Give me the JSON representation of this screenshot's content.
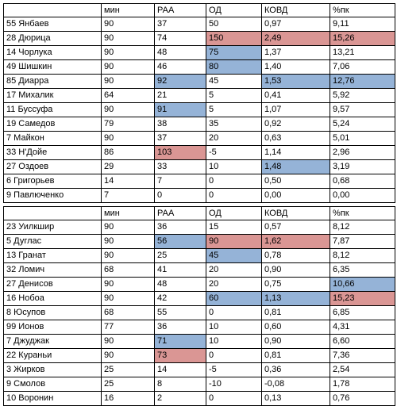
{
  "headers": [
    "",
    "мин",
    "РАА",
    "ОД",
    "КОВД",
    "%пк"
  ],
  "tables": [
    {
      "rows": [
        [
          "55 Янбаев",
          "90",
          "37",
          "50",
          "0,97",
          "9,11"
        ],
        [
          "28 Дюрица",
          "90",
          "74",
          "150",
          "2,49",
          "15,26"
        ],
        [
          "14 Чорлука",
          "90",
          "48",
          "75",
          "1,37",
          "13,21"
        ],
        [
          "49 Шишкин",
          "90",
          "46",
          "80",
          "1,40",
          "7,06"
        ],
        [
          "85 Диарра",
          "90",
          "92",
          "45",
          "1,53",
          "12,76"
        ],
        [
          "17 Михалик",
          "64",
          "21",
          "5",
          "0,41",
          "5,92"
        ],
        [
          "11 Буссуфа",
          "90",
          "91",
          "5",
          "1,07",
          "9,57"
        ],
        [
          "19 Самедов",
          "79",
          "38",
          "35",
          "0,92",
          "5,24"
        ],
        [
          "7 Майкон",
          "90",
          "37",
          "20",
          "0,63",
          "5,01"
        ],
        [
          "33 Н'Дойе",
          "86",
          "103",
          "-5",
          "1,14",
          "2,96"
        ],
        [
          "27 Оздоев",
          "29",
          "33",
          "10",
          "1,48",
          "3,19"
        ],
        [
          "6 Григорьев",
          "14",
          "7",
          "0",
          "0,50",
          "0,68"
        ],
        [
          "9 Павлюченко",
          "7",
          "0",
          "0",
          "0,00",
          "0,00"
        ]
      ],
      "highlights": {
        "1-3": "red",
        "1-4": "red",
        "1-5": "red",
        "2-3": "blue",
        "3-3": "blue",
        "4-2": "blue",
        "4-4": "blue",
        "4-5": "blue",
        "6-2": "blue",
        "9-2": "red",
        "10-4": "blue"
      }
    },
    {
      "rows": [
        [
          "23 Уилкшир",
          "90",
          "36",
          "15",
          "0,57",
          "8,12"
        ],
        [
          "5 Дуглас",
          "90",
          "56",
          "90",
          "1,62",
          "7,87"
        ],
        [
          "13 Гранат",
          "90",
          "25",
          "45",
          "0,78",
          "8,12"
        ],
        [
          "32 Ломич",
          "68",
          "41",
          "20",
          "0,90",
          "6,35"
        ],
        [
          "27 Денисов",
          "90",
          "48",
          "20",
          "0,75",
          "10,66"
        ],
        [
          "16 Нобоа",
          "90",
          "42",
          "60",
          "1,13",
          "15,23"
        ],
        [
          "8 Юсупов",
          "68",
          "55",
          "0",
          "0,81",
          "6,85"
        ],
        [
          "99 Ионов",
          "77",
          "36",
          "10",
          "0,60",
          "4,31"
        ],
        [
          "7 Джуджак",
          "90",
          "71",
          "10",
          "0,90",
          "6,60"
        ],
        [
          "22 Кураньи",
          "90",
          "73",
          "0",
          "0,81",
          "7,36"
        ],
        [
          "3 Жирков",
          "25",
          "14",
          "-5",
          "0,36",
          "2,54"
        ],
        [
          "9 Смолов",
          "25",
          "8",
          "-10",
          "-0,08",
          "1,78"
        ],
        [
          "10 Воронин",
          "16",
          "2",
          "0",
          "0,13",
          "0,76"
        ]
      ],
      "highlights": {
        "1-2": "blue",
        "1-3": "red",
        "1-4": "red",
        "2-3": "blue",
        "4-5": "blue",
        "5-3": "blue",
        "5-4": "blue",
        "5-5": "red",
        "8-2": "blue",
        "9-2": "red"
      }
    }
  ],
  "colors": {
    "blue": "#95b3d7",
    "red": "#da9694"
  }
}
